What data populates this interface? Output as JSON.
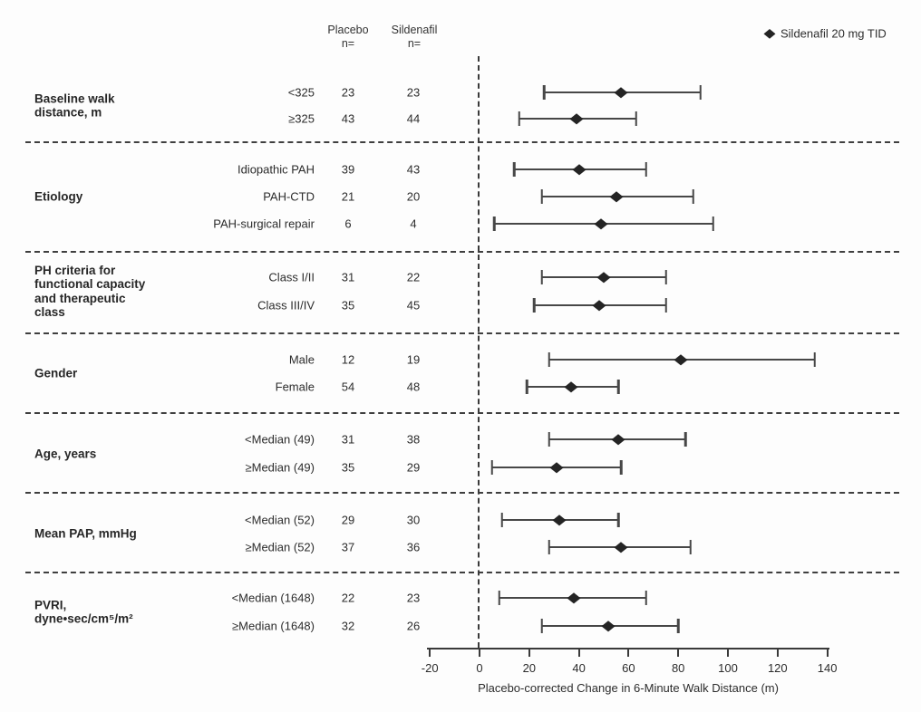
{
  "figure": {
    "columns": {
      "placebo": "Placebo\nn=",
      "sildenafil": "Sildenafil\nn="
    },
    "legend": {
      "label": "Sildenafil 20 mg TID",
      "marker": "diamond-icon"
    },
    "colors": {
      "marker": "#242424",
      "ci_line": "#474747",
      "text": "#2c2c2c",
      "background": "#fdfdfd"
    }
  },
  "chart_data": {
    "type": "forest",
    "title": "",
    "xlabel": "Placebo-corrected Change in 6-Minute Walk Distance (m)",
    "xlim": [
      -20,
      140
    ],
    "x_ticks": [
      -20,
      0,
      20,
      40,
      60,
      80,
      100,
      120,
      140
    ],
    "reference_line_x": 0,
    "legend": "Sildenafil 20 mg TID",
    "legend_position": "top-right",
    "grid": false,
    "columns": [
      "Placebo n=",
      "Sildenafil n="
    ],
    "groups": [
      {
        "name": "Baseline walk\ndistance, m",
        "rows": [
          {
            "label": "<325",
            "placebo_n": "23",
            "sildenafil_n": "23",
            "estimate": 57,
            "ci_low": 26,
            "ci_high": 89
          },
          {
            "label": "≥325",
            "placebo_n": "43",
            "sildenafil_n": "44",
            "estimate": 39,
            "ci_low": 16,
            "ci_high": 63
          }
        ]
      },
      {
        "name": "Etiology",
        "rows": [
          {
            "label": "Idiopathic PAH",
            "placebo_n": "39",
            "sildenafil_n": "43",
            "estimate": 40,
            "ci_low": 14,
            "ci_high": 67
          },
          {
            "label": "PAH-CTD",
            "placebo_n": "21",
            "sildenafil_n": "20",
            "estimate": 55,
            "ci_low": 25,
            "ci_high": 86
          },
          {
            "label": "PAH-surgical repair",
            "placebo_n": "6",
            "sildenafil_n": "4",
            "estimate": 49,
            "ci_low": 6,
            "ci_high": 94
          }
        ]
      },
      {
        "name": "PH criteria for\nfunctional capacity\nand therapeutic\nclass",
        "rows": [
          {
            "label": "Class I/II",
            "placebo_n": "31",
            "sildenafil_n": "22",
            "estimate": 50,
            "ci_low": 25,
            "ci_high": 75
          },
          {
            "label": "Class III/IV",
            "placebo_n": "35",
            "sildenafil_n": "45",
            "estimate": 48,
            "ci_low": 22,
            "ci_high": 75
          }
        ]
      },
      {
        "name": "Gender",
        "rows": [
          {
            "label": "Male",
            "placebo_n": "12",
            "sildenafil_n": "19",
            "estimate": 81,
            "ci_low": 28,
            "ci_high": 135
          },
          {
            "label": "Female",
            "placebo_n": "54",
            "sildenafil_n": "48",
            "estimate": 37,
            "ci_low": 19,
            "ci_high": 56
          }
        ]
      },
      {
        "name": "Age, years",
        "rows": [
          {
            "label": "<Median (49)",
            "placebo_n": "31",
            "sildenafil_n": "38",
            "estimate": 56,
            "ci_low": 28,
            "ci_high": 83
          },
          {
            "label": "≥Median (49)",
            "placebo_n": "35",
            "sildenafil_n": "29",
            "estimate": 31,
            "ci_low": 5,
            "ci_high": 57
          }
        ]
      },
      {
        "name": "Mean PAP, mmHg",
        "rows": [
          {
            "label": "<Median (52)",
            "placebo_n": "29",
            "sildenafil_n": "30",
            "estimate": 32,
            "ci_low": 9,
            "ci_high": 56
          },
          {
            "label": "≥Median (52)",
            "placebo_n": "37",
            "sildenafil_n": "36",
            "estimate": 57,
            "ci_low": 28,
            "ci_high": 85
          }
        ]
      },
      {
        "name": "PVRI,\ndyne•sec/cm⁵/m²",
        "rows": [
          {
            "label": "<Median (1648)",
            "placebo_n": "22",
            "sildenafil_n": "23",
            "estimate": 38,
            "ci_low": 8,
            "ci_high": 67
          },
          {
            "label": "≥Median (1648)",
            "placebo_n": "32",
            "sildenafil_n": "26",
            "estimate": 52,
            "ci_low": 25,
            "ci_high": 80
          }
        ]
      }
    ]
  }
}
